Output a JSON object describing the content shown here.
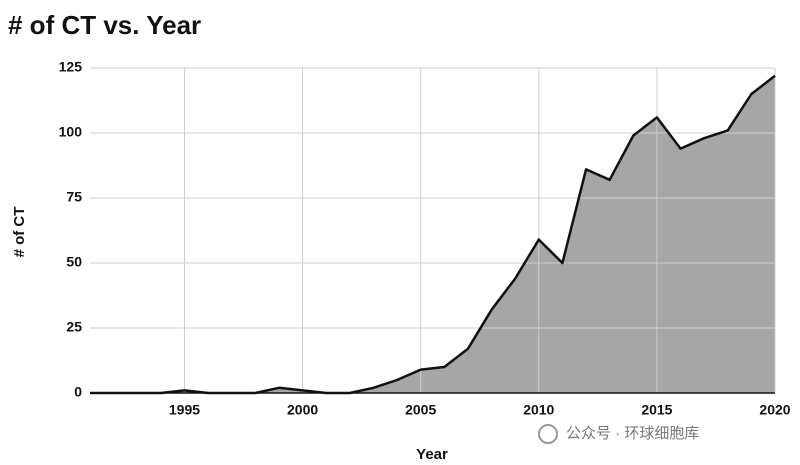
{
  "chart_data": {
    "type": "area",
    "title": "# of CT vs. Year",
    "x_label": "Year",
    "y_label": "# of CT",
    "x": [
      1991,
      1992,
      1993,
      1994,
      1995,
      1996,
      1997,
      1998,
      1999,
      2000,
      2001,
      2002,
      2003,
      2004,
      2005,
      2006,
      2007,
      2008,
      2009,
      2010,
      2011,
      2012,
      2013,
      2014,
      2015,
      2016,
      2017,
      2018,
      2019,
      2020
    ],
    "values": [
      0,
      0,
      0,
      0,
      1,
      0,
      0,
      0,
      2,
      1,
      0,
      0,
      2,
      5,
      9,
      10,
      17,
      32,
      44,
      59,
      50,
      86,
      82,
      99,
      106,
      94,
      98,
      101,
      115,
      122
    ],
    "color": "#a6a6a6",
    "line_color": "#111111",
    "xlim": [
      1991,
      2020
    ],
    "xticks": [
      1995,
      2000,
      2005,
      2010,
      2015,
      2020
    ],
    "ylim": [
      0,
      125
    ],
    "yticks": [
      0,
      25,
      50,
      75,
      100,
      125
    ],
    "grid": true
  },
  "watermark": "公众号 · 环球细胞库"
}
